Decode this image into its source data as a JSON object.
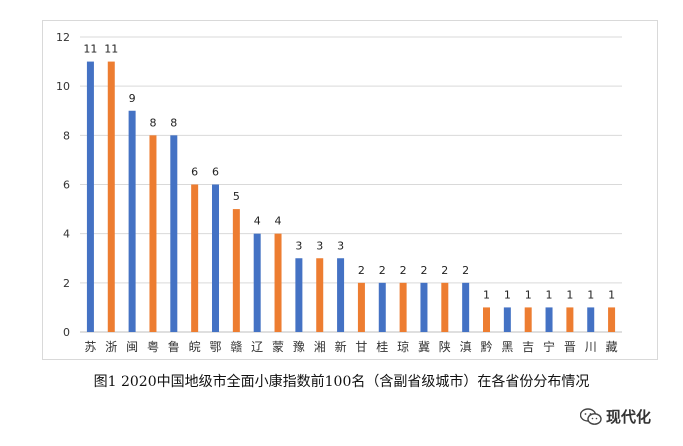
{
  "chart_data": {
    "type": "bar",
    "title": "",
    "xlabel": "",
    "ylabel": "",
    "ylim": [
      0,
      12
    ],
    "yticks": [
      0,
      2,
      4,
      6,
      8,
      10,
      12
    ],
    "grid": true,
    "legend": "none",
    "categories": [
      "苏",
      "浙",
      "闽",
      "粤",
      "鲁",
      "皖",
      "鄂",
      "赣",
      "辽",
      "蒙",
      "豫",
      "湘",
      "新",
      "甘",
      "桂",
      "琼",
      "冀",
      "陕",
      "滇",
      "黔",
      "黑",
      "吉",
      "宁",
      "晋",
      "川",
      "藏"
    ],
    "values": [
      11,
      11,
      9,
      8,
      8,
      6,
      6,
      5,
      4,
      4,
      3,
      3,
      3,
      2,
      2,
      2,
      2,
      2,
      2,
      1,
      1,
      1,
      1,
      1,
      1,
      1
    ],
    "bar_colors": [
      "#4472c4",
      "#ed7d31",
      "#4472c4",
      "#ed7d31",
      "#4472c4",
      "#ed7d31",
      "#4472c4",
      "#ed7d31",
      "#4472c4",
      "#ed7d31",
      "#4472c4",
      "#ed7d31",
      "#4472c4",
      "#ed7d31",
      "#4472c4",
      "#ed7d31",
      "#4472c4",
      "#ed7d31",
      "#4472c4",
      "#ed7d31",
      "#4472c4",
      "#ed7d31",
      "#4472c4",
      "#ed7d31",
      "#4472c4",
      "#ed7d31"
    ],
    "data_labels": true
  },
  "caption": "图1  2020中国地级市全面小康指数前100名（含副省级城市）在各省份分布情况",
  "watermark": {
    "icon": "wechat-icon",
    "text": "现代化"
  }
}
